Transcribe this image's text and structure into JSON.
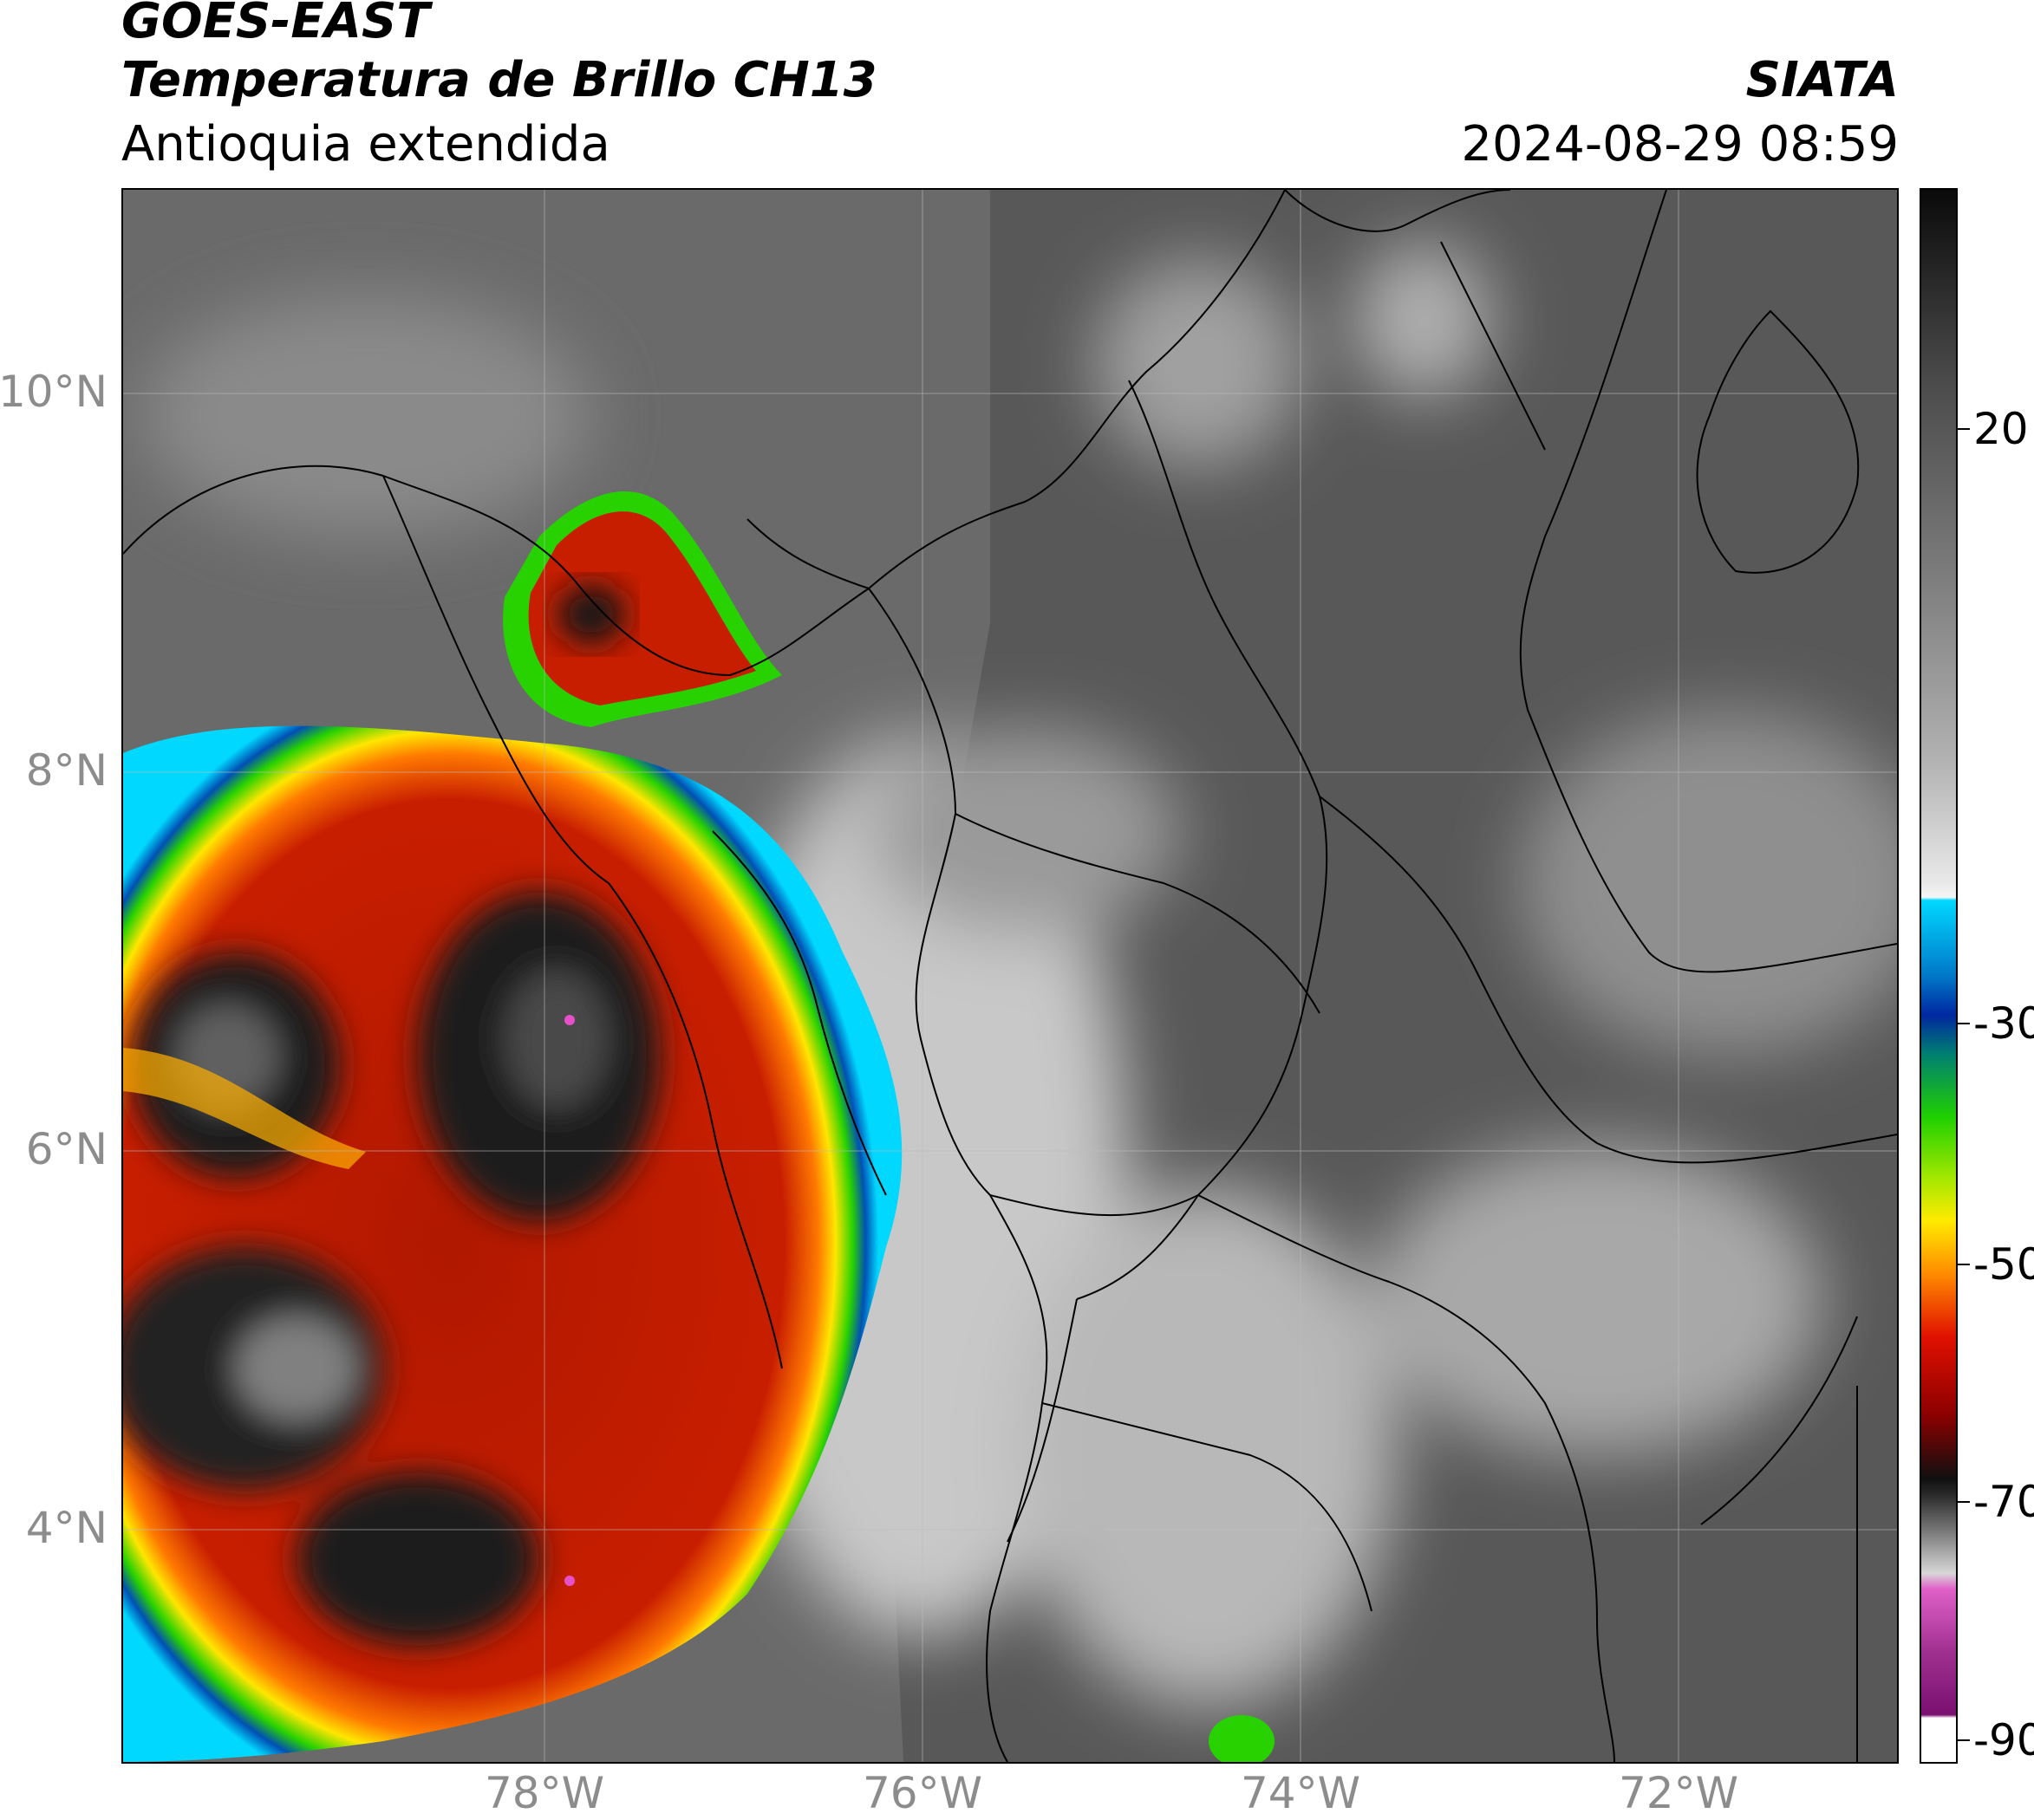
{
  "header": {
    "satellite": "GOES-EAST",
    "product": "Temperatura de Brillo CH13",
    "region": "Antioquia extendida",
    "organization": "SIATA",
    "datetime": "2024-08-29 08:59"
  },
  "map": {
    "lat_labels": [
      {
        "text": "10°N",
        "value": 10
      },
      {
        "text": "8°N",
        "value": 8
      },
      {
        "text": "6°N",
        "value": 6
      },
      {
        "text": "4°N",
        "value": 4
      }
    ],
    "lon_labels": [
      {
        "text": "78°W",
        "value": -78
      },
      {
        "text": "76°W",
        "value": -76
      },
      {
        "text": "74°W",
        "value": -74
      },
      {
        "text": "72°W",
        "value": -72
      }
    ],
    "extent": {
      "lon": [
        -80.2,
        -70.8
      ],
      "lat": [
        2.7,
        11.0
      ]
    },
    "gridlines": true,
    "colors": {
      "ocean_clear": "#6e6e6e",
      "land_warm": "#555555",
      "cloud_light": "#d8d8d8",
      "cold_red": "#c81e00",
      "cold_orange": "#ff7a00",
      "cold_yellow": "#ffe600",
      "cold_green": "#28d200",
      "cold_blue": "#0050b4",
      "coldest_black": "#141414",
      "overshoot_pink": "#e650c8"
    }
  },
  "colorbar": {
    "ticks": [
      {
        "text": "20",
        "value": 20
      },
      {
        "text": "-30",
        "value": -30
      },
      {
        "text": "-50",
        "value": -50
      },
      {
        "text": "-70",
        "value": -70
      },
      {
        "text": "-90",
        "value": -90
      }
    ],
    "range": [
      -90,
      40
    ],
    "colors": {
      "warm_top": "#0a0a0a",
      "gray_mid": "#b0b0b0",
      "white": "#f5f5f5",
      "cyan": "#00d8ff",
      "blue": "#0028a0",
      "teal": "#008070",
      "green": "#20d000",
      "yellow": "#ffea00",
      "orange": "#ff8a00",
      "red": "#e01000",
      "dark_red": "#5a0000",
      "black": "#101010",
      "pink": "#e060c8",
      "purple": "#7a1070"
    }
  }
}
